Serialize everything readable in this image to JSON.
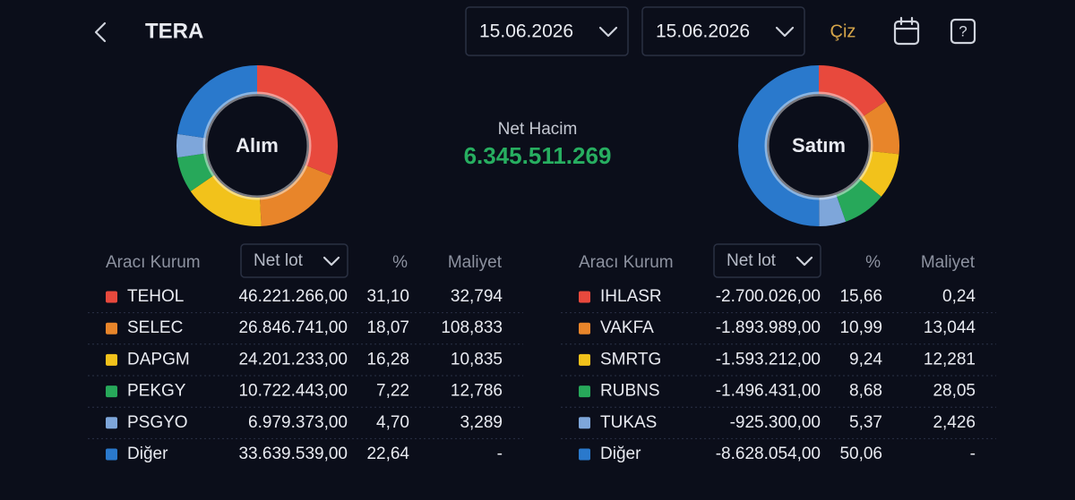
{
  "header": {
    "title": "TERA",
    "date_from": "15.06.2026",
    "date_to": "15.06.2026",
    "draw_button": "Çiz"
  },
  "net_volume": {
    "label": "Net Hacim",
    "value": "6.345.511.269"
  },
  "buy": {
    "label": "Alım",
    "columns": [
      "Aracı Kurum",
      "Net lot",
      "%",
      "Maliyet"
    ],
    "rows": [
      {
        "name": "TEHOL",
        "color": "#e8493d",
        "net_lot": "46.221.266,00",
        "pct": {
          "value": 31.1,
          "label": "31,10"
        },
        "cost": "32,794"
      },
      {
        "name": "SELEC",
        "color": "#e8852a",
        "net_lot": "26.846.741,00",
        "pct": {
          "value": 18.07,
          "label": "18,07"
        },
        "cost": "108,833"
      },
      {
        "name": "DAPGM",
        "color": "#f2c21b",
        "net_lot": "24.201.233,00",
        "pct": {
          "value": 16.28,
          "label": "16,28"
        },
        "cost": "10,835"
      },
      {
        "name": "PEKGY",
        "color": "#27a85a",
        "net_lot": "10.722.443,00",
        "pct": {
          "value": 7.22,
          "label": "7,22"
        },
        "cost": "12,786"
      },
      {
        "name": "PSGYO",
        "color": "#7ea6da",
        "net_lot": "6.979.373,00",
        "pct": {
          "value": 4.7,
          "label": "4,70"
        },
        "cost": "3,289"
      },
      {
        "name": "Diğer",
        "color": "#2a79cc",
        "net_lot": "33.639.539,00",
        "pct": {
          "value": 22.64,
          "label": "22,64"
        },
        "cost": "-"
      }
    ]
  },
  "sell": {
    "label": "Satım",
    "columns": [
      "Aracı Kurum",
      "Net lot",
      "%",
      "Maliyet"
    ],
    "rows": [
      {
        "name": "IHLASR",
        "color": "#e8493d",
        "net_lot": "-2.700.026,00",
        "pct": {
          "value": 15.66,
          "label": "15,66"
        },
        "cost": "0,24"
      },
      {
        "name": "VAKFA",
        "color": "#e8852a",
        "net_lot": "-1.893.989,00",
        "pct": {
          "value": 10.99,
          "label": "10,99"
        },
        "cost": "13,044"
      },
      {
        "name": "SMRTG",
        "color": "#f2c21b",
        "net_lot": "-1.593.212,00",
        "pct": {
          "value": 9.24,
          "label": "9,24"
        },
        "cost": "12,281"
      },
      {
        "name": "RUBNS",
        "color": "#27a85a",
        "net_lot": "-1.496.431,00",
        "pct": {
          "value": 8.68,
          "label": "8,68"
        },
        "cost": "28,05"
      },
      {
        "name": "TUKAS",
        "color": "#7ea6da",
        "net_lot": "-925.300,00",
        "pct": {
          "value": 5.37,
          "label": "5,37"
        },
        "cost": "2,426"
      },
      {
        "name": "Diğer",
        "color": "#2a79cc",
        "net_lot": "-8.628.054,00",
        "pct": {
          "value": 50.06,
          "label": "50,06"
        },
        "cost": "-"
      }
    ]
  }
}
